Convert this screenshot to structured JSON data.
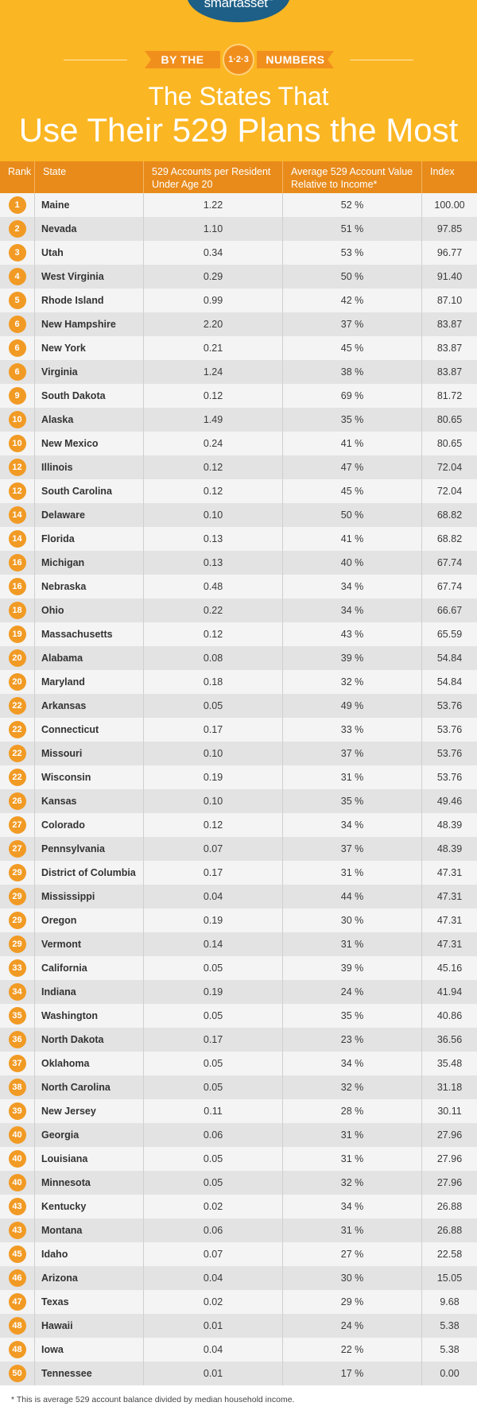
{
  "brand": {
    "name": "smartasset",
    "mark": "™"
  },
  "banner": {
    "left": "BY THE",
    "badge": "1·2·3",
    "right": "NUMBERS"
  },
  "title": {
    "line1": "The States That",
    "line2": "Use Their 529 Plans the Most"
  },
  "colors": {
    "header_bg": "#fbb623",
    "accent": "#f18f1d",
    "brand_blue": "#1d5f86",
    "table_head": "#e88b1b"
  },
  "table": {
    "headers": {
      "rank": "Rank",
      "state": "State",
      "accounts": "529 Accounts per Resident Under Age 20",
      "average": "Average 529 Account Value Relative to Income*",
      "index": "Index"
    },
    "rows": [
      {
        "rank": "1",
        "state": "Maine",
        "accounts": "1.22",
        "average": "52 %",
        "index": "100.00"
      },
      {
        "rank": "2",
        "state": "Nevada",
        "accounts": "1.10",
        "average": "51 %",
        "index": "97.85"
      },
      {
        "rank": "3",
        "state": "Utah",
        "accounts": "0.34",
        "average": "53 %",
        "index": "96.77"
      },
      {
        "rank": "4",
        "state": "West Virginia",
        "accounts": "0.29",
        "average": "50 %",
        "index": "91.40"
      },
      {
        "rank": "5",
        "state": "Rhode Island",
        "accounts": "0.99",
        "average": "42 %",
        "index": "87.10"
      },
      {
        "rank": "6",
        "state": "New Hampshire",
        "accounts": "2.20",
        "average": "37 %",
        "index": "83.87"
      },
      {
        "rank": "6",
        "state": "New York",
        "accounts": "0.21",
        "average": "45 %",
        "index": "83.87"
      },
      {
        "rank": "6",
        "state": "Virginia",
        "accounts": "1.24",
        "average": "38 %",
        "index": "83.87"
      },
      {
        "rank": "9",
        "state": "South Dakota",
        "accounts": "0.12",
        "average": "69 %",
        "index": "81.72"
      },
      {
        "rank": "10",
        "state": "Alaska",
        "accounts": "1.49",
        "average": "35 %",
        "index": "80.65"
      },
      {
        "rank": "10",
        "state": "New Mexico",
        "accounts": "0.24",
        "average": "41 %",
        "index": "80.65"
      },
      {
        "rank": "12",
        "state": "Illinois",
        "accounts": "0.12",
        "average": "47 %",
        "index": "72.04"
      },
      {
        "rank": "12",
        "state": "South Carolina",
        "accounts": "0.12",
        "average": "45 %",
        "index": "72.04"
      },
      {
        "rank": "14",
        "state": "Delaware",
        "accounts": "0.10",
        "average": "50 %",
        "index": "68.82"
      },
      {
        "rank": "14",
        "state": "Florida",
        "accounts": "0.13",
        "average": "41 %",
        "index": "68.82"
      },
      {
        "rank": "16",
        "state": "Michigan",
        "accounts": "0.13",
        "average": "40 %",
        "index": "67.74"
      },
      {
        "rank": "16",
        "state": "Nebraska",
        "accounts": "0.48",
        "average": "34 %",
        "index": "67.74"
      },
      {
        "rank": "18",
        "state": "Ohio",
        "accounts": "0.22",
        "average": "34 %",
        "index": "66.67"
      },
      {
        "rank": "19",
        "state": "Massachusetts",
        "accounts": "0.12",
        "average": "43 %",
        "index": "65.59"
      },
      {
        "rank": "20",
        "state": "Alabama",
        "accounts": "0.08",
        "average": "39 %",
        "index": "54.84"
      },
      {
        "rank": "20",
        "state": "Maryland",
        "accounts": "0.18",
        "average": "32 %",
        "index": "54.84"
      },
      {
        "rank": "22",
        "state": "Arkansas",
        "accounts": "0.05",
        "average": "49 %",
        "index": "53.76"
      },
      {
        "rank": "22",
        "state": "Connecticut",
        "accounts": "0.17",
        "average": "33 %",
        "index": "53.76"
      },
      {
        "rank": "22",
        "state": "Missouri",
        "accounts": "0.10",
        "average": "37 %",
        "index": "53.76"
      },
      {
        "rank": "22",
        "state": "Wisconsin",
        "accounts": "0.19",
        "average": "31 %",
        "index": "53.76"
      },
      {
        "rank": "26",
        "state": "Kansas",
        "accounts": "0.10",
        "average": "35 %",
        "index": "49.46"
      },
      {
        "rank": "27",
        "state": "Colorado",
        "accounts": "0.12",
        "average": "34 %",
        "index": "48.39"
      },
      {
        "rank": "27",
        "state": "Pennsylvania",
        "accounts": "0.07",
        "average": "37 %",
        "index": "48.39"
      },
      {
        "rank": "29",
        "state": "District of Columbia",
        "accounts": "0.17",
        "average": "31 %",
        "index": "47.31"
      },
      {
        "rank": "29",
        "state": "Mississippi",
        "accounts": "0.04",
        "average": "44 %",
        "index": "47.31"
      },
      {
        "rank": "29",
        "state": "Oregon",
        "accounts": "0.19",
        "average": "30 %",
        "index": "47.31"
      },
      {
        "rank": "29",
        "state": "Vermont",
        "accounts": "0.14",
        "average": "31 %",
        "index": "47.31"
      },
      {
        "rank": "33",
        "state": "California",
        "accounts": "0.05",
        "average": "39 %",
        "index": "45.16"
      },
      {
        "rank": "34",
        "state": "Indiana",
        "accounts": "0.19",
        "average": "24 %",
        "index": "41.94"
      },
      {
        "rank": "35",
        "state": "Washington",
        "accounts": "0.05",
        "average": "35 %",
        "index": "40.86"
      },
      {
        "rank": "36",
        "state": "North Dakota",
        "accounts": "0.17",
        "average": "23 %",
        "index": "36.56"
      },
      {
        "rank": "37",
        "state": "Oklahoma",
        "accounts": "0.05",
        "average": "34 %",
        "index": "35.48"
      },
      {
        "rank": "38",
        "state": "North Carolina",
        "accounts": "0.05",
        "average": "32 %",
        "index": "31.18"
      },
      {
        "rank": "39",
        "state": "New Jersey",
        "accounts": "0.11",
        "average": "28 %",
        "index": "30.11"
      },
      {
        "rank": "40",
        "state": "Georgia",
        "accounts": "0.06",
        "average": "31 %",
        "index": "27.96"
      },
      {
        "rank": "40",
        "state": "Louisiana",
        "accounts": "0.05",
        "average": "31 %",
        "index": "27.96"
      },
      {
        "rank": "40",
        "state": "Minnesota",
        "accounts": "0.05",
        "average": "32 %",
        "index": "27.96"
      },
      {
        "rank": "43",
        "state": "Kentucky",
        "accounts": "0.02",
        "average": "34 %",
        "index": "26.88"
      },
      {
        "rank": "43",
        "state": "Montana",
        "accounts": "0.06",
        "average": "31 %",
        "index": "26.88"
      },
      {
        "rank": "45",
        "state": "Idaho",
        "accounts": "0.07",
        "average": "27 %",
        "index": "22.58"
      },
      {
        "rank": "46",
        "state": "Arizona",
        "accounts": "0.04",
        "average": "30 %",
        "index": "15.05"
      },
      {
        "rank": "47",
        "state": "Texas",
        "accounts": "0.02",
        "average": "29 %",
        "index": "9.68"
      },
      {
        "rank": "48",
        "state": "Hawaii",
        "accounts": "0.01",
        "average": "24 %",
        "index": "5.38"
      },
      {
        "rank": "48",
        "state": "Iowa",
        "accounts": "0.04",
        "average": "22 %",
        "index": "5.38"
      },
      {
        "rank": "50",
        "state": "Tennessee",
        "accounts": "0.01",
        "average": "17 %",
        "index": "0.00"
      }
    ]
  },
  "footnote": "* This is average 529 account balance divided by median household income."
}
